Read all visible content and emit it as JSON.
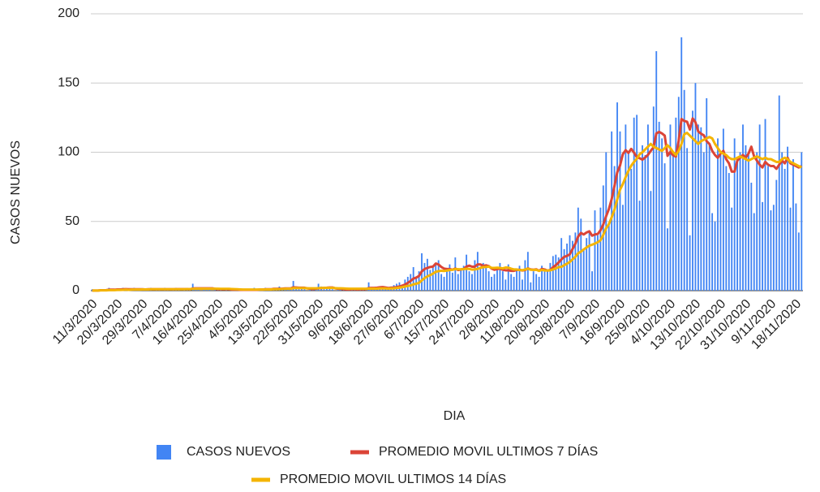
{
  "chart_data": {
    "type": "bar",
    "x_label": "DIA",
    "y_label": "CASOS NUEVOS",
    "ylim": [
      0,
      200
    ],
    "yticks": [
      0,
      50,
      100,
      150,
      200
    ],
    "grid": true,
    "legend": "bottom",
    "categories": [
      "11/3/2020",
      null,
      null,
      null,
      null,
      null,
      null,
      null,
      null,
      "20/3/2020",
      null,
      null,
      null,
      null,
      null,
      null,
      null,
      null,
      "29/3/2020",
      null,
      null,
      null,
      null,
      null,
      null,
      null,
      null,
      "7/4/2020",
      null,
      null,
      null,
      null,
      null,
      null,
      null,
      null,
      "16/4/2020",
      null,
      null,
      null,
      null,
      null,
      null,
      null,
      null,
      "25/4/2020",
      null,
      null,
      null,
      null,
      null,
      null,
      null,
      null,
      "4/5/2020",
      null,
      null,
      null,
      null,
      null,
      null,
      null,
      null,
      "13/5/2020",
      null,
      null,
      null,
      null,
      null,
      null,
      null,
      null,
      "22/5/2020",
      null,
      null,
      null,
      null,
      null,
      null,
      null,
      null,
      "31/5/2020",
      null,
      null,
      null,
      null,
      null,
      null,
      null,
      null,
      "9/6/2020",
      null,
      null,
      null,
      null,
      null,
      null,
      null,
      null,
      "18/6/2020",
      null,
      null,
      null,
      null,
      null,
      null,
      null,
      null,
      "27/6/2020",
      null,
      null,
      null,
      null,
      null,
      null,
      null,
      null,
      "6/7/2020",
      null,
      null,
      null,
      null,
      null,
      null,
      null,
      null,
      "15/7/2020",
      null,
      null,
      null,
      null,
      null,
      null,
      null,
      null,
      "24/7/2020",
      null,
      null,
      null,
      null,
      null,
      null,
      null,
      null,
      "2/8/2020",
      null,
      null,
      null,
      null,
      null,
      null,
      null,
      null,
      "11/8/2020",
      null,
      null,
      null,
      null,
      null,
      null,
      null,
      null,
      "20/8/2020",
      null,
      null,
      null,
      null,
      null,
      null,
      null,
      null,
      "29/8/2020",
      null,
      null,
      null,
      null,
      null,
      null,
      null,
      null,
      "7/9/2020",
      null,
      null,
      null,
      null,
      null,
      null,
      null,
      null,
      "16/9/2020",
      null,
      null,
      null,
      null,
      null,
      null,
      null,
      null,
      "25/9/2020",
      null,
      null,
      null,
      null,
      null,
      null,
      null,
      null,
      "4/10/2020",
      null,
      null,
      null,
      null,
      null,
      null,
      null,
      null,
      "13/10/2020",
      null,
      null,
      null,
      null,
      null,
      null,
      null,
      null,
      "22/10/2020",
      null,
      null,
      null,
      null,
      null,
      null,
      null,
      null,
      "31/10/2020",
      null,
      null,
      null,
      null,
      null,
      null,
      null,
      null,
      "9/11/2020",
      null,
      null,
      null,
      null,
      null,
      null,
      null,
      null,
      "18/11/2020",
      null,
      null
    ],
    "series": [
      {
        "name": "CASOS NUEVOS",
        "type": "bar",
        "color": "#4285f4",
        "values": [
          1,
          0,
          0,
          1,
          0,
          1,
          2,
          0,
          1,
          1,
          0,
          2,
          1,
          0,
          1,
          2,
          1,
          0,
          1,
          0,
          1,
          2,
          0,
          1,
          1,
          0,
          2,
          1,
          0,
          1,
          2,
          1,
          0,
          1,
          2,
          1,
          5,
          2,
          1,
          0,
          1,
          2,
          1,
          0,
          1,
          2,
          1,
          0,
          1,
          0,
          1,
          0,
          1,
          0,
          1,
          1,
          0,
          1,
          2,
          0,
          1,
          0,
          2,
          1,
          0,
          2,
          1,
          3,
          1,
          2,
          1,
          2,
          7,
          3,
          1,
          2,
          1,
          0,
          1,
          1,
          2,
          5,
          3,
          1,
          2,
          2,
          1,
          0,
          1,
          1,
          1,
          0,
          1,
          2,
          1,
          0,
          1,
          1,
          2,
          6,
          2,
          1,
          2,
          3,
          2,
          1,
          2,
          3,
          4,
          5,
          6,
          4,
          8,
          10,
          12,
          17,
          9,
          14,
          27,
          20,
          23,
          15,
          18,
          20,
          22,
          12,
          10,
          14,
          19,
          13,
          24,
          12,
          15,
          18,
          26,
          14,
          12,
          22,
          28,
          16,
          20,
          18,
          14,
          10,
          12,
          17,
          20,
          14,
          8,
          19,
          12,
          10,
          15,
          18,
          8,
          22,
          28,
          6,
          14,
          12,
          10,
          18,
          15,
          14,
          20,
          25,
          26,
          24,
          38,
          30,
          34,
          40,
          36,
          42,
          60,
          52,
          30,
          38,
          42,
          14,
          58,
          40,
          60,
          76,
          100,
          48,
          115,
          90,
          136,
          115,
          62,
          120,
          100,
          88,
          125,
          127,
          65,
          105,
          98,
          120,
          72,
          133,
          173,
          122,
          110,
          92,
          45,
          120,
          100,
          125,
          140,
          183,
          145,
          103,
          40,
          130,
          150,
          120,
          118,
          100,
          139,
          105,
          56,
          50,
          110,
          100,
          117,
          90,
          85,
          60,
          110,
          95,
          100,
          120,
          105,
          98,
          78,
          56,
          100,
          120,
          64,
          124,
          90,
          58,
          62,
          80,
          141,
          100,
          88,
          104,
          60,
          95,
          63,
          42,
          100
        ]
      },
      {
        "name": "PROMEDIO MOVIL ULTIMOS 7 DÍAS",
        "type": "line",
        "color": "#db4437",
        "values": [
          0.1,
          0.1,
          0.1,
          0.3,
          0.3,
          0.4,
          0.7,
          0.7,
          0.7,
          0.9,
          0.9,
          1,
          1.1,
          1,
          1,
          1,
          1,
          1,
          1,
          0.9,
          1,
          1,
          1,
          1,
          1,
          1,
          1,
          1,
          1,
          1,
          1.1,
          1.1,
          1.1,
          1.1,
          1.1,
          1,
          1.6,
          1.7,
          1.7,
          1.7,
          1.7,
          1.7,
          1.7,
          1.7,
          1.3,
          1,
          1,
          1,
          1,
          1,
          0.7,
          0.7,
          0.7,
          0.6,
          0.6,
          0.6,
          0.6,
          0.6,
          0.6,
          0.6,
          0.8,
          0.8,
          1,
          1,
          1,
          1.3,
          1.3,
          1.4,
          1.4,
          1.6,
          1.6,
          1.6,
          2.4,
          2.3,
          2.1,
          2.1,
          2.1,
          1.7,
          1.4,
          1.2,
          1.4,
          1.7,
          1.9,
          2,
          2.1,
          2.3,
          2.3,
          1.7,
          1.4,
          1.3,
          1.1,
          0.9,
          0.9,
          1,
          1,
          0.9,
          1,
          1,
          1.1,
          1.9,
          2,
          2,
          2.1,
          2.4,
          2.6,
          2.3,
          1.9,
          2.1,
          2.3,
          2.6,
          3,
          3.6,
          4.4,
          5.6,
          7,
          8.7,
          9.4,
          10.6,
          13.9,
          15.6,
          16.4,
          17.1,
          17.4,
          19.6,
          18.9,
          17.1,
          15.9,
          15.6,
          15.6,
          15.1,
          16,
          14.9,
          15.3,
          15.6,
          17.4,
          18.1,
          17.3,
          17.3,
          19,
          18.9,
          17.9,
          18.3,
          17.7,
          16,
          15.1,
          15.6,
          15.9,
          15.1,
          14.7,
          14.7,
          14.3,
          14.3,
          15,
          15.1,
          14.6,
          14.9,
          16.1,
          15.3,
          15.1,
          15.4,
          14.3,
          15.7,
          15.3,
          14.5,
          14.9,
          16.9,
          18.4,
          20.3,
          22.6,
          24.4,
          25.1,
          26.3,
          30.1,
          33.9,
          39.1,
          41.7,
          40.6,
          42,
          42.9,
          39.7,
          40.6,
          40.9,
          43.6,
          47.9,
          53.7,
          58.9,
          66.2,
          75.6,
          85.5,
          90.4,
          98.6,
          101.5,
          99.5,
          102.4,
          99.7,
          96.4,
          95.7,
          94.6,
          96.2,
          98.1,
          101,
          103.6,
          113.6,
          114.7,
          113.6,
          112,
          97.4,
          100.2,
          97.8,
          96.8,
          108.3,
          124,
          122.6,
          122,
          116.4,
          124.4,
          121.6,
          115,
          113.4,
          112.2,
          108,
          106,
          101,
          98,
          96,
          99,
          101,
          95,
          92,
          86,
          86,
          94,
          96,
          98,
          96,
          99,
          104,
          97,
          94,
          91,
          89,
          93,
          91,
          90,
          90,
          88,
          91,
          94,
          92,
          96,
          92,
          91,
          90,
          89,
          90
        ]
      },
      {
        "name": "PROMEDIO MOVIL ULTIMOS 14 DÍAS",
        "type": "line",
        "color": "#f4b400",
        "values": [
          0.1,
          0.1,
          0.1,
          0.2,
          0.2,
          0.2,
          0.4,
          0.4,
          0.4,
          0.5,
          0.5,
          0.6,
          0.7,
          0.6,
          0.7,
          0.8,
          0.8,
          0.8,
          0.9,
          0.9,
          0.9,
          1,
          1,
          1,
          1,
          1,
          1,
          1,
          1,
          1,
          1,
          1,
          1,
          1,
          1.1,
          1.1,
          1.3,
          1.4,
          1.4,
          1.4,
          1.4,
          1.4,
          1.4,
          1.4,
          1.4,
          1.4,
          1.3,
          1.3,
          1.3,
          1.3,
          1.2,
          1.1,
          1,
          0.9,
          0.8,
          0.8,
          0.8,
          0.8,
          0.8,
          0.8,
          0.8,
          0.8,
          0.9,
          0.9,
          0.9,
          1,
          1,
          1.1,
          1.2,
          1.3,
          1.4,
          1.4,
          1.8,
          1.8,
          1.8,
          1.8,
          1.8,
          1.7,
          1.7,
          1.7,
          1.7,
          1.8,
          2,
          2,
          2,
          2,
          2,
          1.8,
          1.7,
          1.7,
          1.6,
          1.5,
          1.4,
          1.4,
          1.4,
          1.4,
          1.4,
          1.4,
          1.4,
          1.5,
          1.5,
          1.5,
          1.5,
          1.6,
          1.6,
          1.6,
          1.5,
          1.6,
          1.7,
          1.9,
          2.2,
          2.5,
          3,
          3.4,
          3.8,
          4.5,
          5,
          5.6,
          7.4,
          9.1,
          10.3,
          11.2,
          12.3,
          13.6,
          14.1,
          14.4,
          14.2,
          14.5,
          14.9,
          15.1,
          15.6,
          15.5,
          15.4,
          15.6,
          15.8,
          15.7,
          15.2,
          15.4,
          15.7,
          16.5,
          17,
          17.1,
          17.4,
          16.5,
          16.4,
          16.6,
          16.4,
          16.1,
          16.7,
          16.6,
          15.9,
          15.3,
          15.3,
          14.9,
          14.8,
          15.3,
          15.9,
          15.1,
          15,
          15.1,
          14.3,
          15,
          14.6,
          14.6,
          14.7,
          15.3,
          16.1,
          17,
          17.2,
          18.4,
          19.5,
          20.7,
          22.6,
          24.5,
          27,
          28.2,
          29.8,
          31.2,
          32.5,
          33.2,
          34,
          35,
          36.4,
          40.3,
          45,
          48,
          53,
          58.6,
          66,
          73,
          77,
          82,
          86.5,
          90.3,
          93,
          95.3,
          98.5,
          100,
          102,
          104,
          106,
          104,
          103,
          102,
          101,
          103,
          105,
          103,
          100,
          98,
          101,
          106,
          113,
          114,
          112,
          110,
          108,
          106,
          108,
          109,
          110,
          111,
          110,
          106,
          103,
          100,
          99,
          98,
          96,
          95,
          95,
          96,
          97,
          96,
          95,
          94,
          95,
          96,
          97,
          96,
          95,
          96,
          95,
          95,
          94,
          93,
          93,
          95,
          96,
          95,
          93,
          92,
          91,
          90,
          89
        ]
      }
    ]
  }
}
